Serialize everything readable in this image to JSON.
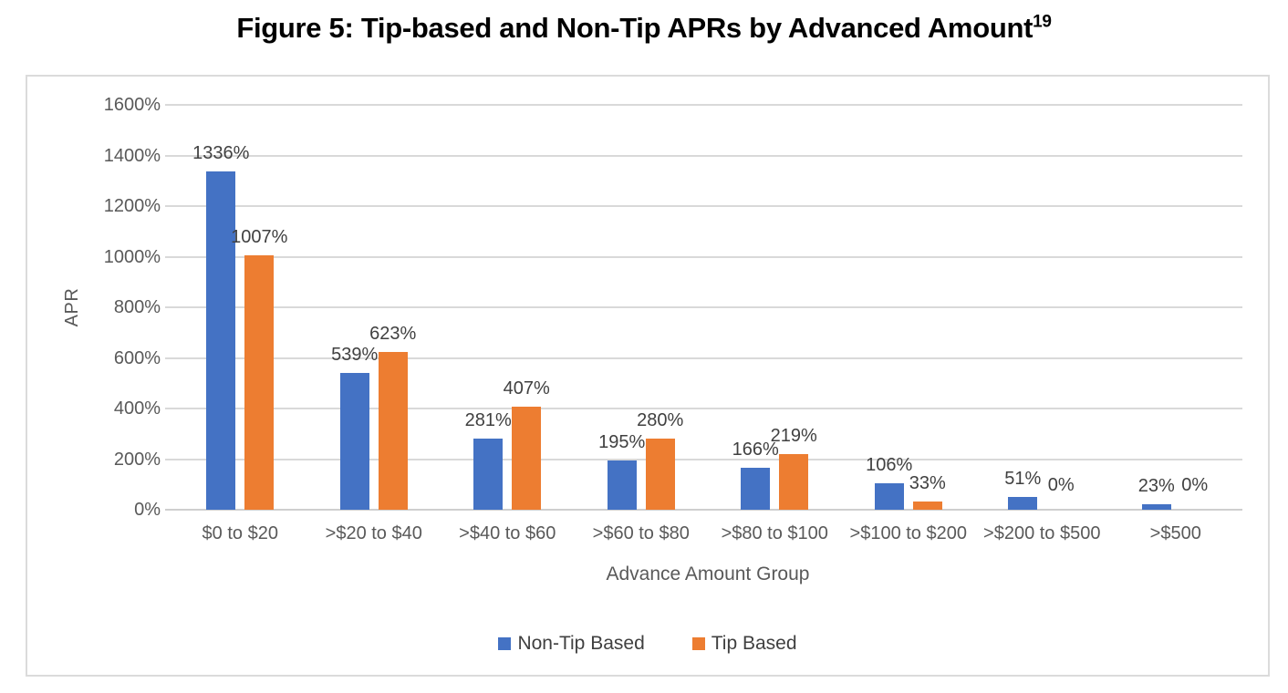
{
  "figure": {
    "title": "Figure 5: Tip-based and Non-Tip APRs by Advanced Amount",
    "title_superscript": "19"
  },
  "chart_data": {
    "type": "bar",
    "categories": [
      "$0 to $20",
      ">$20 to $40",
      ">$40 to $60",
      ">$60 to $80",
      ">$80 to $100",
      ">$100 to $200",
      ">$200 to $500",
      ">$500"
    ],
    "series": [
      {
        "name": "Non-Tip Based",
        "color": "#4472C4",
        "values": [
          1336,
          539,
          281,
          195,
          166,
          106,
          51,
          23
        ],
        "labels": [
          "1336%",
          "539%",
          "281%",
          "195%",
          "166%",
          "106%",
          "51%",
          "23%"
        ]
      },
      {
        "name": "Tip Based",
        "color": "#ED7D31",
        "values": [
          1007,
          623,
          407,
          280,
          219,
          33,
          0,
          0
        ],
        "labels": [
          "1007%",
          "623%",
          "407%",
          "280%",
          "219%",
          "33%",
          "0%",
          "0%"
        ]
      }
    ],
    "xlabel": "Advance Amount Group",
    "ylabel": "APR",
    "ylim": [
      0,
      1600
    ],
    "ytick_step": 200,
    "ytick_labels": [
      "0%",
      "200%",
      "400%",
      "600%",
      "800%",
      "1000%",
      "1200%",
      "1400%",
      "1600%"
    ],
    "grid": "horizontal",
    "legend_position": "bottom"
  },
  "colors": {
    "gridline": "#D9D9D9",
    "frame_border": "#DBDBDB",
    "axis_text": "#595959",
    "data_label_text": "#404040",
    "series_blue": "#4472C4",
    "series_orange": "#ED7D31"
  }
}
